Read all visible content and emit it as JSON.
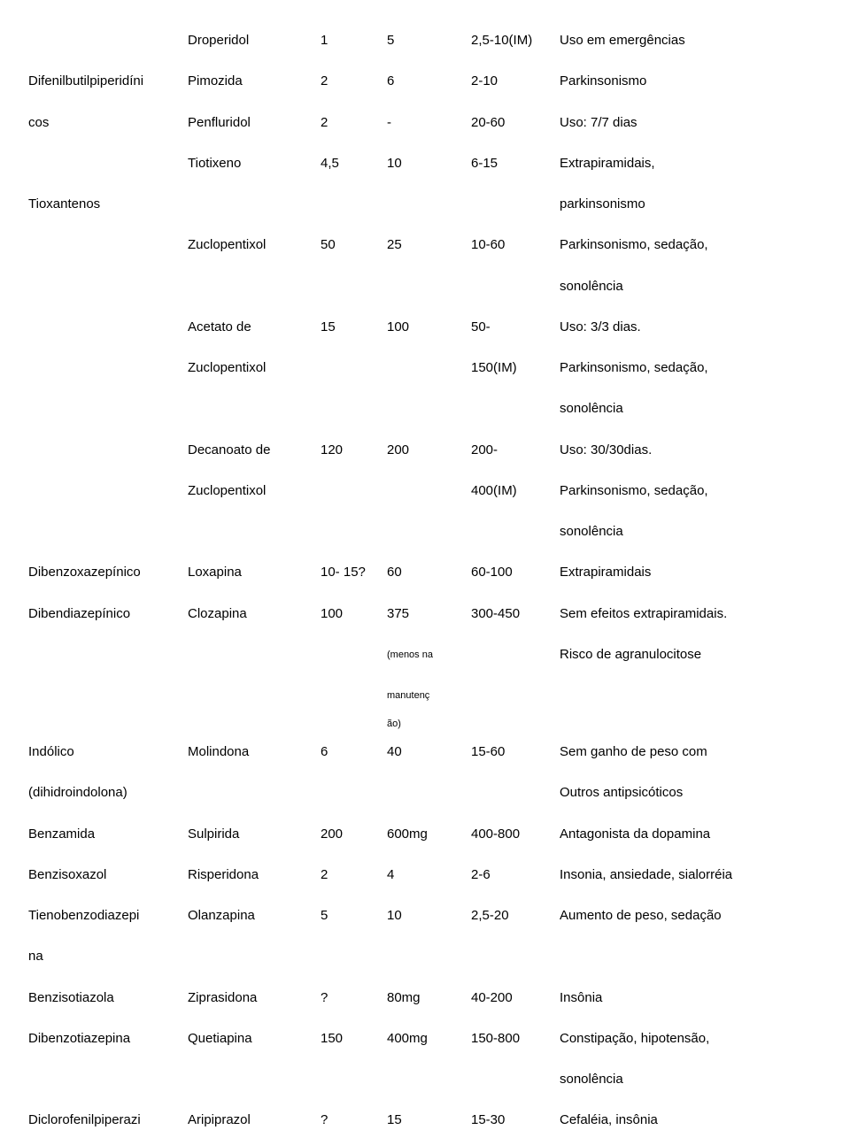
{
  "rows": [
    {
      "c1": "",
      "c2": "Droperidol",
      "c3": "1",
      "c4": "5",
      "c5": "2,5-10(IM)",
      "c6": "Uso em emergências"
    },
    {
      "c1": "Difenilbutilpiperidíni",
      "c2": "Pimozida",
      "c3": "2",
      "c4": "6",
      "c5": "2-10",
      "c6": "Parkinsonismo"
    },
    {
      "c1": "cos",
      "c2": "Penfluridol",
      "c3": "2",
      "c4": "-",
      "c5": "20-60",
      "c6": "Uso: 7/7 dias"
    },
    {
      "c1": "",
      "c2": "Tiotixeno",
      "c3": "4,5",
      "c4": "10",
      "c5": "6-15",
      "c6": "Extrapiramidais,"
    },
    {
      "c1": "Tioxantenos",
      "c2": "",
      "c3": "",
      "c4": "",
      "c5": "",
      "c6": "parkinsonismo"
    },
    {
      "c1": "",
      "c2": "Zuclopentixol",
      "c3": "50",
      "c4": "25",
      "c5": "10-60",
      "c6": "Parkinsonismo, sedação,"
    },
    {
      "c1": "",
      "c2": "",
      "c3": "",
      "c4": "",
      "c5": "",
      "c6": "sonolência"
    },
    {
      "c1": "",
      "c2": "Acetato de",
      "c3": "15",
      "c4": "100",
      "c5": "50-",
      "c6": "Uso: 3/3 dias."
    },
    {
      "c1": "",
      "c2": "Zuclopentixol",
      "c3": "",
      "c4": "",
      "c5": "150(IM)",
      "c6": "Parkinsonismo, sedação,"
    },
    {
      "c1": "",
      "c2": "",
      "c3": "",
      "c4": "",
      "c5": "",
      "c6": "sonolência"
    },
    {
      "c1": "",
      "c2": "Decanoato de",
      "c3": "120",
      "c4": "200",
      "c5": "200-",
      "c6": "Uso: 30/30dias."
    },
    {
      "c1": "",
      "c2": "Zuclopentixol",
      "c3": "",
      "c4": "",
      "c5": "400(IM)",
      "c6": "Parkinsonismo, sedação,"
    },
    {
      "c1": "",
      "c2": "",
      "c3": "",
      "c4": "",
      "c5": "",
      "c6": "sonolência"
    },
    {
      "c1": "Dibenzoxazepínico",
      "c2": "Loxapina",
      "c3": "10- 15?",
      "c4": "60",
      "c5": "60-100",
      "c6": "Extrapiramidais"
    },
    {
      "c1": "Dibendiazepínico",
      "c2": "Clozapina",
      "c3": "100",
      "c4": "375",
      "c5": "300-450",
      "c6": "Sem efeitos extrapiramidais."
    },
    {
      "c1": "",
      "c2": "",
      "c3": "",
      "c4": "(menos na",
      "c5": "",
      "c6": "Risco de agranulocitose",
      "small4": true
    },
    {
      "c1": "",
      "c2": "",
      "c3": "",
      "c4": "manutenç",
      "c5": "",
      "c6": "",
      "small4": true,
      "tight": true
    },
    {
      "c1": "",
      "c2": "",
      "c3": "",
      "c4": "ão)",
      "c5": "",
      "c6": "",
      "small4": true,
      "tight": true
    },
    {
      "c1": "Indólico",
      "c2": "Molindona",
      "c3": "6",
      "c4": "40",
      "c5": "15-60",
      "c6": "Sem ganho de peso com"
    },
    {
      "c1": "(dihidroindolona)",
      "c2": "",
      "c3": "",
      "c4": "",
      "c5": "",
      "c6": "Outros antipsicóticos"
    },
    {
      "c1": "Benzamida",
      "c2": "Sulpirida",
      "c3": "200",
      "c4": "600mg",
      "c5": "400-800",
      "c6": "Antagonista da dopamina"
    },
    {
      "c1": "Benzisoxazol",
      "c2": "Risperidona",
      "c3": "2",
      "c4": "4",
      "c5": "2-6",
      "c6": "Insonia, ansiedade, sialorréia"
    },
    {
      "c1": "Tienobenzodiazepi",
      "c2": "Olanzapina",
      "c3": "5",
      "c4": "10",
      "c5": "2,5-20",
      "c6": "Aumento de peso, sedação"
    },
    {
      "c1": "na",
      "c2": "",
      "c3": "",
      "c4": "",
      "c5": "",
      "c6": ""
    },
    {
      "c1": "Benzisotiazola",
      "c2": "Ziprasidona",
      "c3": "?",
      "c4": "80mg",
      "c5": "40-200",
      "c6": "Insônia"
    },
    {
      "c1": "Dibenzotiazepina",
      "c2": "Quetiapina",
      "c3": "150",
      "c4": "400mg",
      "c5": "150-800",
      "c6": "Constipação, hipotensão,"
    },
    {
      "c1": "",
      "c2": "",
      "c3": "",
      "c4": "",
      "c5": "",
      "c6": "sonolência"
    },
    {
      "c1": "Diclorofenilpiperazi",
      "c2": "Aripiprazol",
      "c3": "?",
      "c4": "15",
      "c5": "15-30",
      "c6": "Cefaléia, insônia"
    }
  ]
}
